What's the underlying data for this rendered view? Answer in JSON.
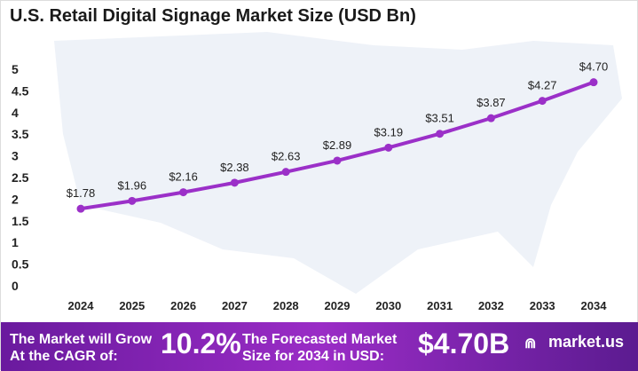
{
  "chart_data": {
    "type": "line",
    "title": "U.S. Retail Digital Signage Market Size (USD Bn)",
    "categories": [
      "2024",
      "2025",
      "2026",
      "2027",
      "2028",
      "2029",
      "2030",
      "2031",
      "2032",
      "2033",
      "2034"
    ],
    "values": [
      1.78,
      1.96,
      2.16,
      2.38,
      2.63,
      2.89,
      3.19,
      3.51,
      3.87,
      4.27,
      4.7
    ],
    "data_labels": [
      "$1.78",
      "$1.96",
      "$2.16",
      "$2.38",
      "$2.63",
      "$2.89",
      "$3.19",
      "$3.51",
      "$3.87",
      "$4.27",
      "$4.70"
    ],
    "yticks": [
      "0",
      "0.5",
      "1",
      "1.5",
      "2",
      "2.5",
      "3",
      "3.5",
      "4",
      "4.5",
      "5"
    ],
    "ylim": [
      0,
      5
    ],
    "grid": false,
    "line_color": "#9b30c8"
  },
  "footer": {
    "cagr_label": "The Market will Grow At the CAGR of:",
    "cagr_value": "10.2%",
    "forecast_label": "The Forecasted Market Size for 2034 in USD:",
    "forecast_value": "$4.70B",
    "brand": "market.us"
  }
}
